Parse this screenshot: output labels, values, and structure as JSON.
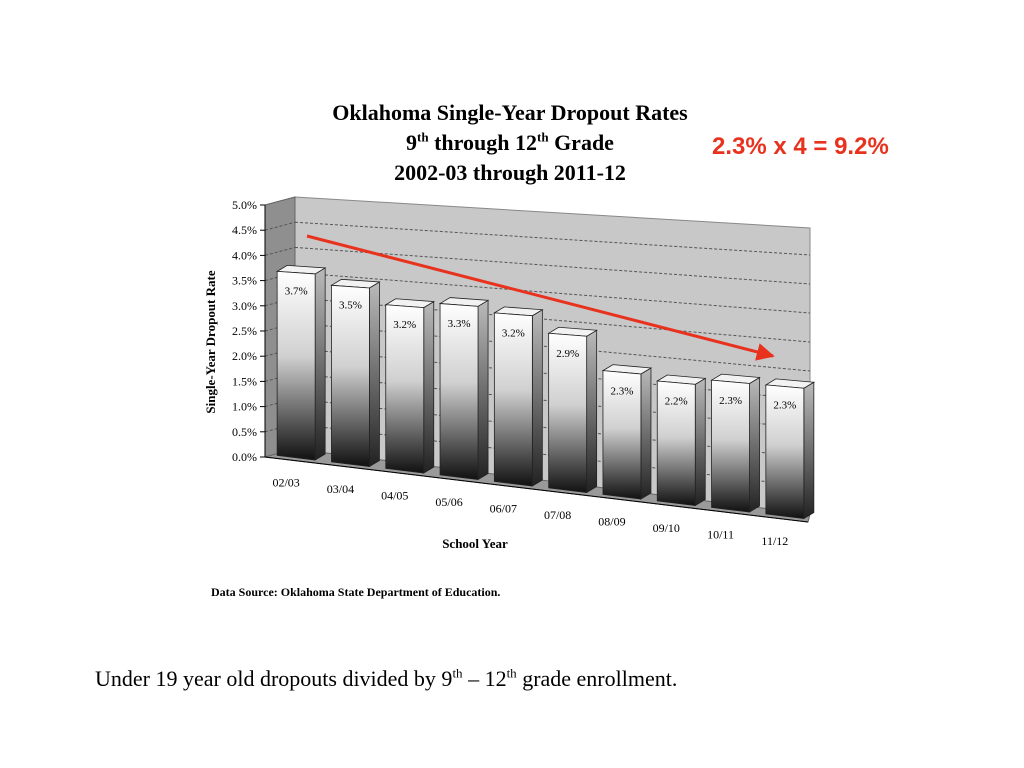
{
  "slide": {
    "callout": "2.3% x 4 = 9.2%",
    "source": "Data Source:  Oklahoma State Department of Education.",
    "note": {
      "before": "Under 19 year old dropouts divided by 9",
      "sup1": "th",
      "mid": " – 12",
      "sup2": "th",
      "after": " grade enrollment."
    }
  },
  "chart_data": {
    "type": "bar",
    "title": {
      "line1": "Oklahoma Single-Year Dropout Rates",
      "line2_a": "9",
      "line2_sup_a": "th",
      "line2_b": " through 12",
      "line2_sup_b": "th",
      "line2_c": " Grade",
      "line3": "2002-03 through 2011-12"
    },
    "xlabel": "School Year",
    "ylabel": "Single-Year Dropout Rate",
    "categories": [
      "02/03",
      "03/04",
      "04/05",
      "05/06",
      "06/07",
      "07/08",
      "08/09",
      "09/10",
      "10/11",
      "11/12"
    ],
    "values": [
      3.7,
      3.5,
      3.2,
      3.3,
      3.2,
      2.9,
      2.3,
      2.2,
      2.3,
      2.3
    ],
    "value_labels": [
      "3.7%",
      "3.5%",
      "3.2%",
      "3.3%",
      "3.2%",
      "2.9%",
      "2.3%",
      "2.2%",
      "2.3%",
      "2.3%"
    ],
    "ylim": [
      0,
      5
    ],
    "yticks": [
      "0.0%",
      "0.5%",
      "1.0%",
      "1.5%",
      "2.0%",
      "2.5%",
      "3.0%",
      "3.5%",
      "4.0%",
      "4.5%",
      "5.0%"
    ],
    "grid": true,
    "trend_arrow_color": "#e8321e",
    "bar_style": "3d-gradient-white-black"
  }
}
